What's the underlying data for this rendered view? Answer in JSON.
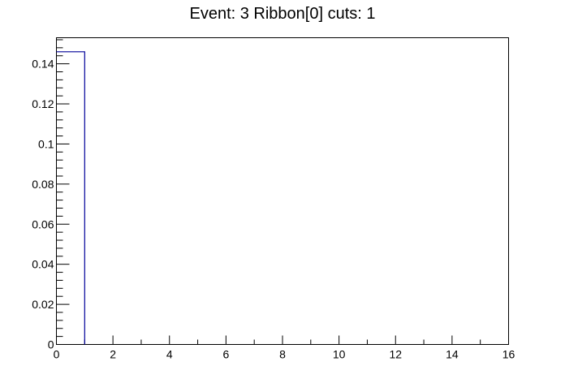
{
  "chart_data": {
    "type": "histogram",
    "title": "Event: 3 Ribbon[0] cuts: 1",
    "xlabel": "",
    "ylabel": "",
    "xlim": [
      0,
      16
    ],
    "ylim": [
      0,
      0.153
    ],
    "x_ticks": [
      0,
      2,
      4,
      6,
      8,
      10,
      12,
      14,
      16
    ],
    "x_tick_labels": [
      "0",
      "2",
      "4",
      "6",
      "8",
      "10",
      "12",
      "14",
      "16"
    ],
    "y_ticks": [
      0,
      0.02,
      0.04,
      0.06,
      0.08,
      0.1,
      0.12,
      0.14
    ],
    "y_tick_labels": [
      "0",
      "0.02",
      "0.04",
      "0.06",
      "0.08",
      "0.1",
      "0.12",
      "0.14"
    ],
    "bin_edges": [
      0,
      1
    ],
    "values": [
      0.146
    ],
    "line_color": "#000099",
    "grid": false,
    "legend": "none"
  }
}
